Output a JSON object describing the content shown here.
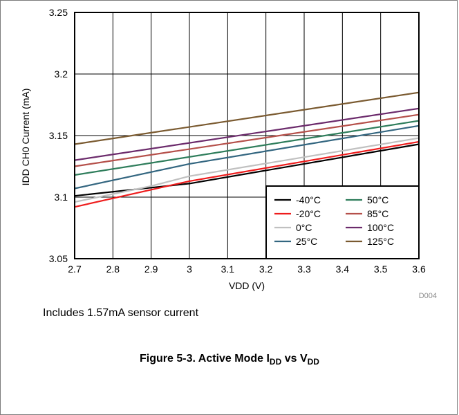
{
  "note": "Includes 1.57mA sensor current",
  "caption": {
    "prefix": "Figure 5-3. Active Mode I",
    "sub1": "DD",
    "mid": " vs V",
    "sub2": "DD"
  },
  "figure_id": "D004",
  "colors": {
    "-40°C": "#000000",
    "-20°C": "#ee1c1c",
    "0°C": "#c0c0c0",
    "25°C": "#336680",
    "50°C": "#2e7d5b",
    "85°C": "#b5504a",
    "100°C": "#6b2a6b",
    "125°C": "#7a5a30"
  },
  "chart_data": {
    "type": "line",
    "xlabel": "VDD (V)",
    "ylabel": "IDD CH0 Current (mA)",
    "xlim": [
      2.7,
      3.6
    ],
    "ylim": [
      3.05,
      3.25
    ],
    "xticks": [
      "2.7",
      "2.8",
      "2.9",
      "3",
      "3.1",
      "3.2",
      "3.3",
      "3.4",
      "3.5",
      "3.6"
    ],
    "yticks": [
      "3.05",
      "3.1",
      "3.15",
      "3.2",
      "3.25"
    ],
    "grid": true,
    "legend_position": "bottom-right",
    "legend_columns": 2,
    "series": [
      {
        "name": "-40°C",
        "x": [
          2.7,
          3.0,
          3.6
        ],
        "y": [
          3.101,
          3.111,
          3.143
        ]
      },
      {
        "name": "-20°C",
        "x": [
          2.7,
          2.9,
          3.0,
          3.6
        ],
        "y": [
          3.092,
          3.106,
          3.113,
          3.145
        ]
      },
      {
        "name": "0°C",
        "x": [
          2.7,
          2.9,
          3.0,
          3.6
        ],
        "y": [
          3.096,
          3.109,
          3.117,
          3.148
        ]
      },
      {
        "name": "25°C",
        "x": [
          2.7,
          3.0,
          3.6
        ],
        "y": [
          3.107,
          3.127,
          3.158
        ]
      },
      {
        "name": "50°C",
        "x": [
          2.7,
          3.6
        ],
        "y": [
          3.118,
          3.162
        ]
      },
      {
        "name": "85°C",
        "x": [
          2.7,
          3.6
        ],
        "y": [
          3.125,
          3.167
        ]
      },
      {
        "name": "100°C",
        "x": [
          2.7,
          3.6
        ],
        "y": [
          3.13,
          3.172
        ]
      },
      {
        "name": "125°C",
        "x": [
          2.7,
          3.6
        ],
        "y": [
          3.143,
          3.185
        ]
      }
    ]
  }
}
